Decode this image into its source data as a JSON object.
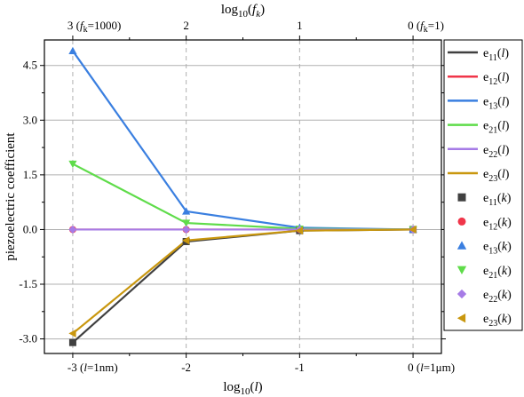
{
  "chart_data": {
    "type": "line",
    "title": "",
    "xlabel": "log10(l)",
    "x2label": "log10(fk)",
    "ylabel": "piezoelectric coefficient",
    "x": [
      -3,
      -2,
      -1,
      0
    ],
    "xlim": [
      -3.25,
      0.25
    ],
    "ylim": [
      -3.4,
      5.2
    ],
    "yticks": [
      -3.0,
      -1.5,
      0.0,
      1.5,
      3.0,
      4.5
    ],
    "ytick_labels": [
      "-3.0",
      "-1.5",
      "0.0",
      "1.5",
      "3.0",
      "4.5"
    ],
    "xtick_labels": [
      {
        "pre": "-3 (",
        "var": "l",
        "post": "=1nm)"
      },
      {
        "pre": "-2",
        "var": "",
        "post": ""
      },
      {
        "pre": "-1",
        "var": "",
        "post": ""
      },
      {
        "pre": "0 (",
        "var": "l",
        "post": "=1μm)"
      }
    ],
    "x2tick_labels": [
      {
        "pre": "3 (",
        "var": "f",
        "sub": "k",
        "post": "=1000)"
      },
      {
        "pre": "2",
        "var": "",
        "sub": "",
        "post": ""
      },
      {
        "pre": "1",
        "var": "",
        "sub": "",
        "post": ""
      },
      {
        "pre": "0 (",
        "var": "f",
        "sub": "k",
        "post": "=1)"
      }
    ],
    "grid": true,
    "legend_position": "right-outside",
    "series": [
      {
        "name": "e11(l)",
        "key": "e11",
        "arg": "l",
        "kind": "line",
        "color": "#404040",
        "values": [
          -3.1,
          -0.33,
          -0.03,
          0.0
        ]
      },
      {
        "name": "e12(l)",
        "key": "e12",
        "arg": "l",
        "kind": "line",
        "color": "#f0364a",
        "values": [
          0.0,
          0.0,
          0.0,
          0.0
        ]
      },
      {
        "name": "e13(l)",
        "key": "e13",
        "arg": "l",
        "kind": "line",
        "color": "#3a7fe0",
        "values": [
          4.9,
          0.5,
          0.05,
          0.0
        ]
      },
      {
        "name": "e21(l)",
        "key": "e21",
        "arg": "l",
        "kind": "line",
        "color": "#5fdc4a",
        "values": [
          1.8,
          0.18,
          0.02,
          0.0
        ]
      },
      {
        "name": "e22(l)",
        "key": "e22",
        "arg": "l",
        "kind": "line",
        "color": "#a67be6",
        "values": [
          0.0,
          0.0,
          0.0,
          0.0
        ]
      },
      {
        "name": "e23(l)",
        "key": "e23",
        "arg": "l",
        "kind": "line",
        "color": "#c9970e",
        "values": [
          -2.85,
          -0.3,
          -0.03,
          0.0
        ]
      },
      {
        "name": "e11(k)",
        "key": "e11",
        "arg": "k",
        "kind": "marker",
        "marker": "square",
        "color": "#404040",
        "values": [
          -3.1,
          -0.33,
          -0.03,
          0.0
        ]
      },
      {
        "name": "e12(k)",
        "key": "e12",
        "arg": "k",
        "kind": "marker",
        "marker": "circle",
        "color": "#f0364a",
        "values": [
          0.0,
          0.0,
          0.0,
          0.0
        ]
      },
      {
        "name": "e13(k)",
        "key": "e13",
        "arg": "k",
        "kind": "marker",
        "marker": "triangle-up",
        "color": "#3a7fe0",
        "values": [
          4.9,
          0.5,
          0.05,
          0.0
        ]
      },
      {
        "name": "e21(k)",
        "key": "e21",
        "arg": "k",
        "kind": "marker",
        "marker": "triangle-down",
        "color": "#5fdc4a",
        "values": [
          1.8,
          0.18,
          0.02,
          0.0
        ]
      },
      {
        "name": "e22(k)",
        "key": "e22",
        "arg": "k",
        "kind": "marker",
        "marker": "diamond",
        "color": "#a67be6",
        "values": [
          0.0,
          0.0,
          0.0,
          0.0
        ]
      },
      {
        "name": "e23(k)",
        "key": "e23",
        "arg": "k",
        "kind": "marker",
        "marker": "triangle-left",
        "color": "#c9970e",
        "values": [
          -2.85,
          -0.3,
          -0.03,
          0.0
        ]
      }
    ]
  }
}
